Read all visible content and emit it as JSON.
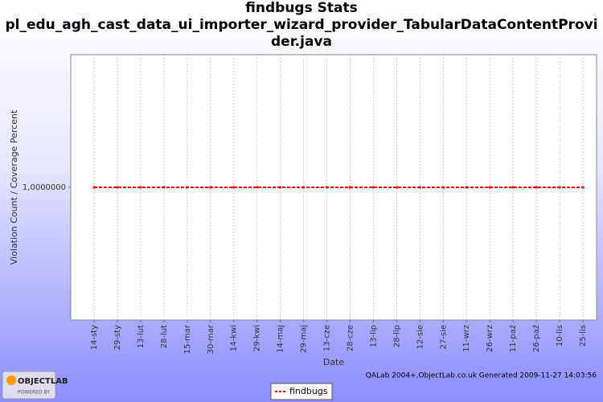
{
  "chart_data": {
    "type": "line",
    "title": "findbugs  Stats",
    "subtitle": "pl_edu_agh_cast_data_ui_importer_wizard_provider_TabularDataContentProvider.java",
    "x_label": "Date",
    "y_label": "Violation Count / Coverage Percent",
    "categories": [
      "14-sty",
      "29-sty",
      "13-lut",
      "28-lut",
      "15-mar",
      "30-mar",
      "14-kwi",
      "29-kwi",
      "14-maj",
      "29-maj",
      "13-cze",
      "28-cze",
      "13-lip",
      "28-lip",
      "12-sie",
      "27-sie",
      "11-wrz",
      "26-wrz",
      "11-paź",
      "26-paź",
      "10-lis",
      "25-lis"
    ],
    "series": [
      {
        "name": "findbugs",
        "color": "#ff0000",
        "values": [
          1,
          1,
          1,
          1,
          1,
          1,
          1,
          1,
          1,
          1,
          1,
          1,
          1,
          1,
          1,
          1,
          1,
          1,
          1,
          1,
          1,
          1
        ]
      }
    ],
    "ylim": [
      0,
      2
    ],
    "yticks": [
      {
        "value": 1,
        "label": "1,0000000"
      }
    ],
    "grid": true,
    "legend": "bottom",
    "footer": "QALab 2004+,ObjectLab.co.uk Generated 2009-11-27 14:03:56"
  },
  "logo": {
    "name": "OBJECTLAB",
    "tagline": "POWERED BY"
  }
}
